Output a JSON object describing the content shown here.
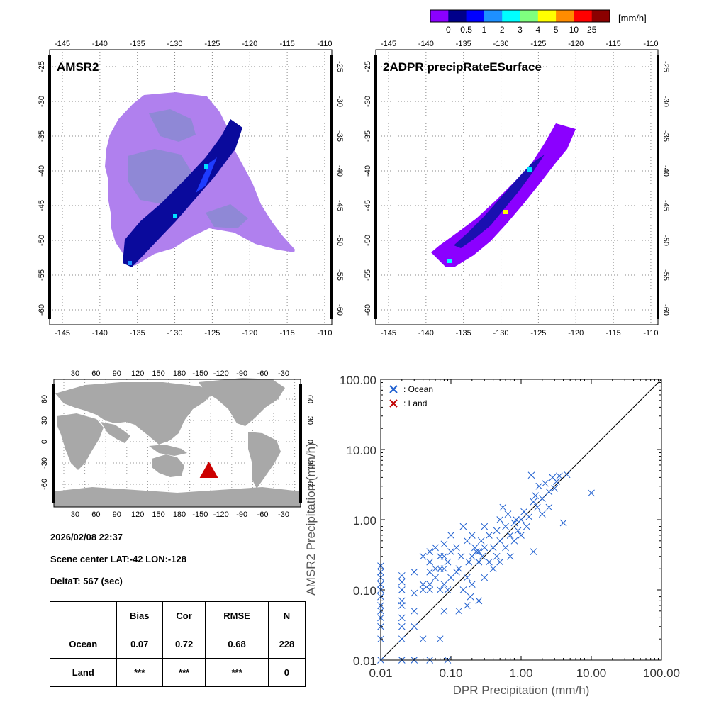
{
  "colorbar": {
    "unit": "[mm/h]",
    "tick_labels": [
      "0",
      "0.5",
      "1",
      "2",
      "3",
      "4",
      "5",
      "10",
      "25"
    ],
    "colors": [
      "#8b00ff",
      "#00008b",
      "#0000ff",
      "#1e90ff",
      "#00ffff",
      "#7fff7f",
      "#ffff00",
      "#ff8c00",
      "#ff0000",
      "#8b0000"
    ]
  },
  "map_amsr2": {
    "title": "AMSR2",
    "lon_ticks": [
      "-145",
      "-140",
      "-135",
      "-130",
      "-125",
      "-120",
      "-115",
      "-110"
    ],
    "lat_ticks": [
      "-25",
      "-30",
      "-35",
      "-40",
      "-45",
      "-50",
      "-55",
      "-60"
    ]
  },
  "map_dpr": {
    "title": "2ADPR precipRateESurface",
    "lon_ticks": [
      "-145",
      "-140",
      "-135",
      "-130",
      "-125",
      "-120",
      "-115",
      "-110"
    ],
    "lat_ticks": [
      "-25",
      "-30",
      "-35",
      "-40",
      "-45",
      "-50",
      "-55",
      "-60"
    ]
  },
  "world_map": {
    "top_ticks": [
      "30",
      "60",
      "90",
      "120",
      "150",
      "180",
      "-150",
      "-120",
      "-90",
      "-60",
      "-30"
    ],
    "bottom_ticks": [
      "30",
      "60",
      "90",
      "120",
      "150",
      "180",
      "-150",
      "-120",
      "-90",
      "-60",
      "-30"
    ],
    "left_ticks": [
      "60",
      "30",
      "0",
      "-30",
      "-60"
    ],
    "right_ticks": [
      "60",
      "30",
      "0",
      "-30",
      "-60"
    ],
    "marker_color": "#cc0000",
    "marker": {
      "lat": -42,
      "lon": -128
    }
  },
  "scene": {
    "datetime": "2026/02/08 22:37",
    "center": "Scene center LAT:-42   LON:-128",
    "delta": "DeltaT:  567 (sec)"
  },
  "stats_table": {
    "headers": [
      "",
      "Bias",
      "Cor",
      "RMSE",
      "N"
    ],
    "rows": [
      {
        "label": "Ocean",
        "bias": "0.07",
        "cor": "0.72",
        "rmse": "0.68",
        "n": "228"
      },
      {
        "label": "Land",
        "bias": "***",
        "cor": "***",
        "rmse": "***",
        "n": "0"
      }
    ]
  },
  "chart_data": {
    "type": "scatter",
    "xlabel": "DPR Precipitation (mm/h)",
    "ylabel": "AMSR2 Precipitation (mm/h)",
    "xscale": "log",
    "yscale": "log",
    "xlim": [
      0.01,
      100
    ],
    "ylim": [
      0.01,
      100
    ],
    "tick_values": [
      0.01,
      0.1,
      1,
      10,
      100
    ],
    "tick_labels": [
      "0.01",
      "0.10",
      "1.00",
      "10.00",
      "100.00"
    ],
    "reference_line": "y = x",
    "legend": {
      "placement": "top-left",
      "entries": [
        {
          "label": ": Ocean",
          "color": "#2060d0"
        },
        {
          "label": ": Land",
          "color": "#c00000"
        }
      ]
    },
    "series": [
      {
        "name": ": Ocean",
        "color": "#2060d0",
        "points": [
          [
            0.01,
            0.01
          ],
          [
            0.01,
            0.02
          ],
          [
            0.01,
            0.03
          ],
          [
            0.01,
            0.04
          ],
          [
            0.01,
            0.05
          ],
          [
            0.01,
            0.06
          ],
          [
            0.01,
            0.08
          ],
          [
            0.01,
            0.1
          ],
          [
            0.01,
            0.12
          ],
          [
            0.01,
            0.15
          ],
          [
            0.01,
            0.18
          ],
          [
            0.01,
            0.22
          ],
          [
            0.02,
            0.01
          ],
          [
            0.02,
            0.02
          ],
          [
            0.02,
            0.03
          ],
          [
            0.02,
            0.04
          ],
          [
            0.02,
            0.06
          ],
          [
            0.02,
            0.07
          ],
          [
            0.02,
            0.1
          ],
          [
            0.02,
            0.13
          ],
          [
            0.02,
            0.16
          ],
          [
            0.03,
            0.01
          ],
          [
            0.03,
            0.03
          ],
          [
            0.03,
            0.05
          ],
          [
            0.03,
            0.09
          ],
          [
            0.03,
            0.18
          ],
          [
            0.04,
            0.02
          ],
          [
            0.04,
            0.1
          ],
          [
            0.04,
            0.12
          ],
          [
            0.04,
            0.3
          ],
          [
            0.05,
            0.01
          ],
          [
            0.05,
            0.1
          ],
          [
            0.05,
            0.12
          ],
          [
            0.05,
            0.18
          ],
          [
            0.05,
            0.25
          ],
          [
            0.05,
            0.35
          ],
          [
            0.06,
            0.15
          ],
          [
            0.06,
            0.2
          ],
          [
            0.06,
            0.4
          ],
          [
            0.07,
            0.02
          ],
          [
            0.07,
            0.1
          ],
          [
            0.07,
            0.2
          ],
          [
            0.07,
            0.3
          ],
          [
            0.08,
            0.05
          ],
          [
            0.08,
            0.12
          ],
          [
            0.08,
            0.2
          ],
          [
            0.08,
            0.3
          ],
          [
            0.08,
            0.45
          ],
          [
            0.09,
            0.01
          ],
          [
            0.09,
            0.1
          ],
          [
            0.09,
            0.25
          ],
          [
            0.1,
            0.15
          ],
          [
            0.1,
            0.35
          ],
          [
            0.1,
            0.6
          ],
          [
            0.12,
            0.4
          ],
          [
            0.12,
            0.18
          ],
          [
            0.13,
            0.2
          ],
          [
            0.13,
            0.05
          ],
          [
            0.14,
            0.3
          ],
          [
            0.15,
            0.1
          ],
          [
            0.15,
            0.8
          ],
          [
            0.17,
            0.06
          ],
          [
            0.17,
            0.15
          ],
          [
            0.17,
            0.5
          ],
          [
            0.18,
            0.25
          ],
          [
            0.19,
            0.08
          ],
          [
            0.2,
            0.6
          ],
          [
            0.2,
            0.3
          ],
          [
            0.2,
            0.12
          ],
          [
            0.22,
            0.4
          ],
          [
            0.23,
            0.35
          ],
          [
            0.25,
            0.07
          ],
          [
            0.25,
            0.35
          ],
          [
            0.25,
            0.25
          ],
          [
            0.27,
            0.5
          ],
          [
            0.28,
            0.3
          ],
          [
            0.3,
            0.4
          ],
          [
            0.3,
            0.8
          ],
          [
            0.3,
            0.15
          ],
          [
            0.35,
            0.25
          ],
          [
            0.35,
            0.6
          ],
          [
            0.4,
            0.4
          ],
          [
            0.4,
            0.2
          ],
          [
            0.45,
            0.7
          ],
          [
            0.45,
            0.3
          ],
          [
            0.5,
            1.0
          ],
          [
            0.5,
            0.5
          ],
          [
            0.5,
            0.25
          ],
          [
            0.55,
            1.5
          ],
          [
            0.6,
            0.8
          ],
          [
            0.6,
            0.4
          ],
          [
            0.65,
            1.2
          ],
          [
            0.7,
            0.6
          ],
          [
            0.7,
            0.3
          ],
          [
            0.8,
            0.9
          ],
          [
            0.8,
            0.5
          ],
          [
            0.85,
            1.0
          ],
          [
            0.9,
            0.7
          ],
          [
            1.0,
            1.0
          ],
          [
            1.0,
            0.6
          ],
          [
            1.1,
            1.3
          ],
          [
            1.2,
            0.8
          ],
          [
            1.3,
            1.1
          ],
          [
            1.4,
            4.3
          ],
          [
            1.5,
            1.8
          ],
          [
            1.5,
            0.35
          ],
          [
            1.6,
            2.2
          ],
          [
            1.7,
            1.5
          ],
          [
            1.8,
            3.0
          ],
          [
            2.0,
            2.0
          ],
          [
            2.0,
            1.2
          ],
          [
            2.2,
            3.3
          ],
          [
            2.5,
            2.5
          ],
          [
            2.5,
            1.5
          ],
          [
            2.8,
            4.0
          ],
          [
            3.0,
            2.8
          ],
          [
            3.2,
            3.5
          ],
          [
            3.5,
            4.2
          ],
          [
            4.0,
            0.9
          ],
          [
            4.5,
            4.4
          ],
          [
            10.0,
            2.4
          ]
        ]
      },
      {
        "name": ": Land",
        "color": "#c00000",
        "points": []
      }
    ]
  }
}
